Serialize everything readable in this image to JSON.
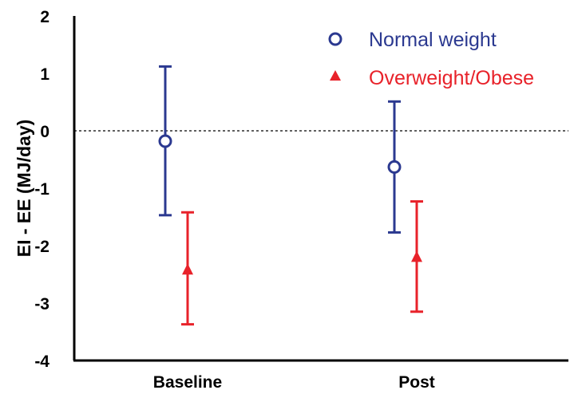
{
  "chart_data": {
    "type": "scatter",
    "categories": [
      "Baseline",
      "Post"
    ],
    "ylabel": "EI - EE (MJ/day)",
    "xlabel": "",
    "title": "",
    "ylim": [
      -4,
      2
    ],
    "yticks": [
      "2",
      "1",
      "0",
      "-1",
      "-2",
      "-3",
      "-4"
    ],
    "reference_line": 0,
    "legend_position": "top-right",
    "series": [
      {
        "name": "Normal weight",
        "marker": "open-circle",
        "color": "#2B3990",
        "values": [
          -0.18,
          -0.63
        ],
        "upper": [
          1.12,
          0.51
        ],
        "lower": [
          -1.47,
          -1.77
        ]
      },
      {
        "name": "Overweight/Obese",
        "marker": "filled-triangle",
        "color": "#E8222A",
        "values": [
          -2.42,
          -2.2
        ],
        "upper": [
          -1.42,
          -1.23
        ],
        "lower": [
          -3.37,
          -3.15
        ]
      }
    ]
  }
}
